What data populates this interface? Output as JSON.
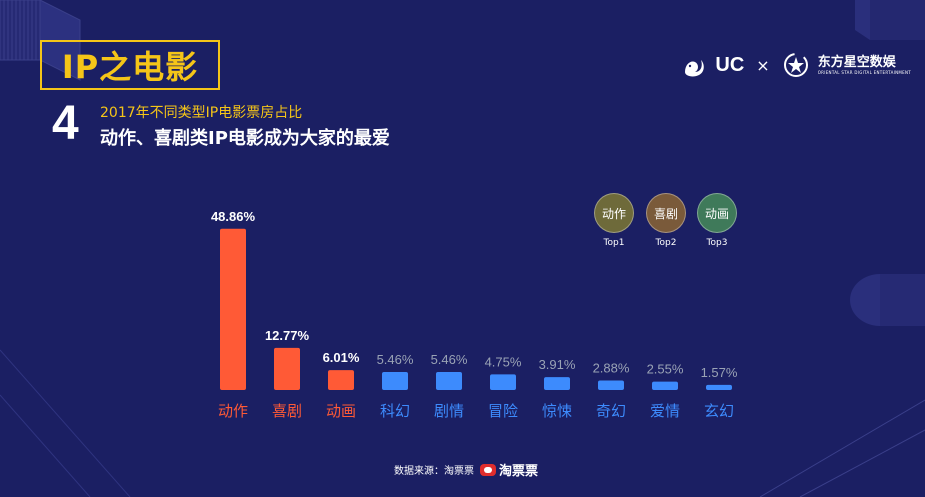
{
  "header": {
    "title": "IP之电影",
    "logo_uc": "UC",
    "logo_times": "×",
    "logo_partner": "东方星空数娱",
    "logo_partner_sub": "ORIENTAL STAR DIGITAL ENTERTAINMENT"
  },
  "slide": {
    "number": "4",
    "subtitle_1": "2017年不同类型IP电影票房占比",
    "subtitle_2": "动作、喜剧类IP电影成为大家的最爱"
  },
  "top_badges": [
    {
      "genre": "动作",
      "rank": "Top1",
      "color": "#6e6a3a"
    },
    {
      "genre": "喜剧",
      "rank": "Top2",
      "color": "#7a5a3a"
    },
    {
      "genre": "动画",
      "rank": "Top3",
      "color": "#3f7a5a"
    }
  ],
  "chart_data": {
    "type": "bar",
    "title": "",
    "xlabel": "",
    "ylabel": "",
    "ylim": [
      0,
      50
    ],
    "grid": false,
    "legend": "none",
    "categories": [
      "动作",
      "喜剧",
      "动画",
      "科幻",
      "剧情",
      "冒险",
      "惊悚",
      "奇幻",
      "爱情",
      "玄幻"
    ],
    "values": [
      48.86,
      12.77,
      6.01,
      5.46,
      5.46,
      4.75,
      3.91,
      2.88,
      2.55,
      1.57
    ],
    "value_labels": [
      "48.86%",
      "12.77%",
      "6.01%",
      "5.46%",
      "5.46%",
      "4.75%",
      "3.91%",
      "2.88%",
      "2.55%",
      "1.57%"
    ],
    "colors": {
      "top": "#ff5a36",
      "rest": "#3d8bfd",
      "top_label": "#ffffff",
      "rest_label": "#9aa3b5",
      "top_category": "#ff5a36",
      "rest_category": "#3d8bfd"
    },
    "top_count": 3
  },
  "footer": {
    "source_label": "数据来源：淘票票",
    "brand": "淘票票"
  }
}
